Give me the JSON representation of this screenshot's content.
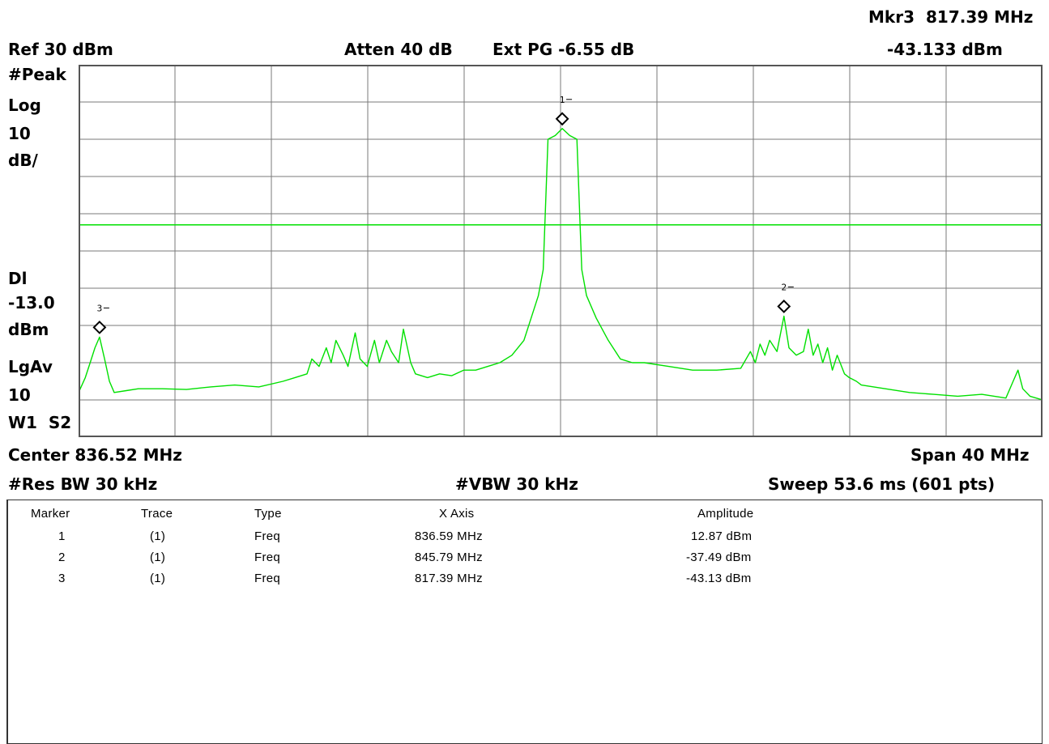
{
  "header": {
    "marker_readout_label": "Mkr3",
    "marker_readout_freq": "817.39 MHz",
    "marker_readout_amp": "-43.133 dBm",
    "ref_level": "Ref 30 dBm",
    "atten": "Atten 40 dB",
    "ext_pg": "Ext PG -6.55 dB"
  },
  "left_panel": {
    "detector": "#Peak",
    "scale_type": "Log",
    "scale_value": "10",
    "scale_unit": "dB/",
    "display_line_label": "Dl",
    "display_line_value": "-13.0",
    "display_line_unit": "dBm",
    "avg_label": "LgAv",
    "avg_count": "10",
    "trace_state": "W1  S2"
  },
  "footer": {
    "center": "Center 836.52 MHz",
    "span": "Span 40 MHz",
    "rbw": "#Res BW 30 kHz",
    "vbw": "#VBW 30 kHz",
    "sweep": "Sweep 53.6 ms (601 pts)"
  },
  "table": {
    "headers": [
      "Marker",
      "Trace",
      "Type",
      "X Axis",
      "Amplitude"
    ],
    "rows": [
      [
        "1",
        "(1)",
        "Freq",
        "836.59 MHz",
        "12.87 dBm"
      ],
      [
        "2",
        "(1)",
        "Freq",
        "845.79 MHz",
        "-37.49 dBm"
      ],
      [
        "3",
        "(1)",
        "Freq",
        "817.39 MHz",
        "-43.13 dBm"
      ]
    ]
  },
  "colors": {
    "trace": "#00e000",
    "grid": "#7a7a7a",
    "background": "#ffffff",
    "marker": "#000000"
  },
  "chart_data": {
    "type": "line",
    "x_unit": "MHz",
    "y_unit": "dBm",
    "xlim": [
      816.52,
      856.52
    ],
    "ylim": [
      -70,
      30
    ],
    "grid": true,
    "display_line": -13.0,
    "series": [
      {
        "x": [
          816.52,
          816.8,
          817.0,
          817.2,
          817.39,
          817.6,
          817.8,
          818.0,
          818.5,
          819,
          820,
          821,
          822,
          823,
          824,
          825,
          825.5,
          826,
          826.2,
          826.5,
          826.8,
          827,
          827.2,
          827.5,
          827.7,
          828,
          828.2,
          828.5,
          828.8,
          829,
          829.3,
          829.5,
          829.8,
          830,
          830.3,
          830.5,
          831,
          831.5,
          832,
          832.5,
          833,
          833.5,
          834,
          834.5,
          835,
          835.3,
          835.6,
          835.8,
          836.0,
          836.3,
          836.59,
          836.9,
          837.2,
          837.4,
          837.6,
          838,
          838.5,
          839,
          839.5,
          840,
          841,
          842,
          843,
          844,
          844.4,
          844.6,
          844.8,
          845.0,
          845.2,
          845.5,
          845.79,
          846.0,
          846.3,
          846.6,
          846.8,
          847.0,
          847.2,
          847.4,
          847.6,
          847.8,
          848.0,
          848.3,
          848.5,
          848.8,
          849,
          850,
          851,
          852,
          853,
          854,
          855,
          855.3,
          855.5,
          855.7,
          856,
          856.52
        ],
        "y": [
          -58,
          -54,
          -50,
          -46,
          -43.13,
          -49,
          -55,
          -58,
          -57.5,
          -57,
          -57,
          -57.2,
          -56.5,
          -56,
          -56.5,
          -55,
          -54,
          -53,
          -49,
          -51,
          -46,
          -50,
          -44,
          -48,
          -51,
          -42,
          -49,
          -51,
          -44,
          -50,
          -44,
          -47,
          -50,
          -41,
          -50,
          -53,
          -54,
          -53,
          -53.5,
          -52,
          -52,
          -51,
          -50,
          -48,
          -44,
          -38,
          -32,
          -25,
          10,
          11,
          12.87,
          11,
          10,
          -25,
          -32,
          -38,
          -44,
          -49,
          -50,
          -50,
          -51,
          -52,
          -52,
          -51.5,
          -47,
          -50,
          -45,
          -48,
          -44,
          -47,
          -37.49,
          -46,
          -48,
          -47,
          -41,
          -48,
          -45,
          -50,
          -46,
          -52,
          -48,
          -53,
          -54,
          -55,
          -56,
          -57,
          -58,
          -58.5,
          -59,
          -58.5,
          -59.5,
          -55,
          -52,
          -57,
          -59,
          -60
        ]
      }
    ],
    "markers": [
      {
        "label": "1",
        "x": 836.59,
        "y": 12.87
      },
      {
        "label": "2",
        "x": 845.79,
        "y": -37.49
      },
      {
        "label": "3",
        "x": 817.39,
        "y": -43.13
      }
    ]
  }
}
